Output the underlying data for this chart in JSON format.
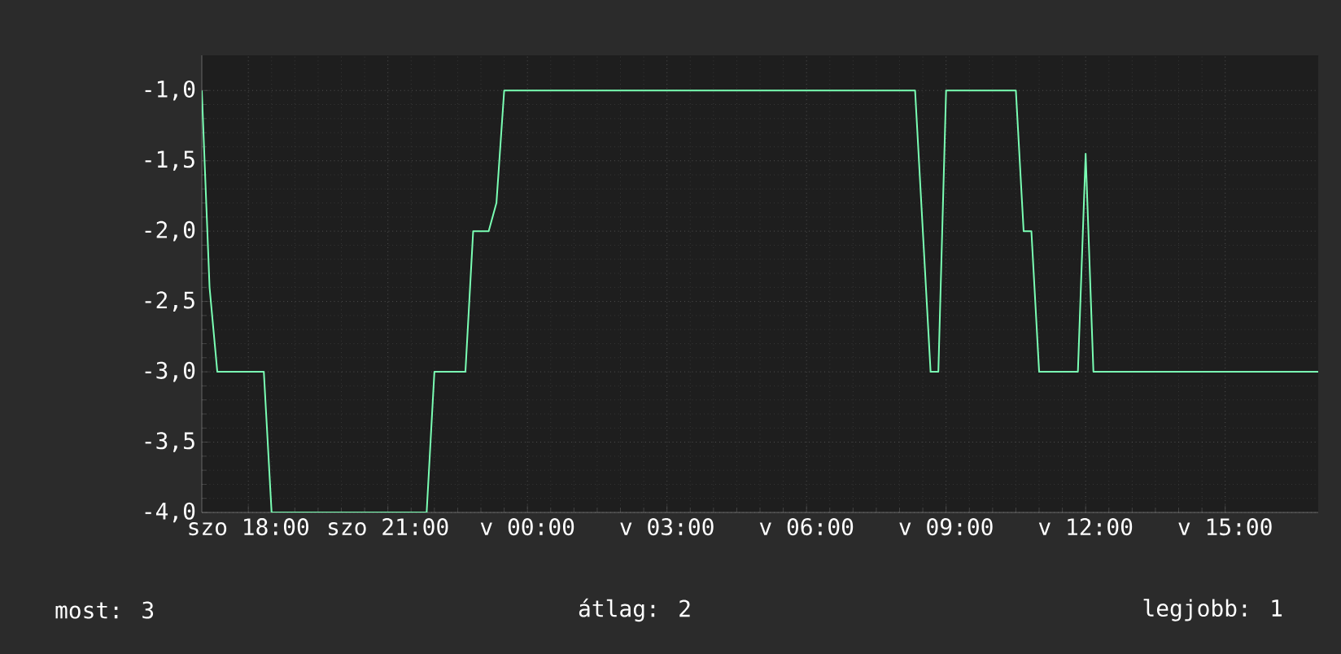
{
  "chart_data": {
    "type": "line",
    "categories": [
      null,
      null,
      null,
      null,
      null,
      null,
      "szo 18:00",
      null,
      null,
      null,
      null,
      null,
      null,
      null,
      null,
      null,
      null,
      null,
      null,
      null,
      null,
      null,
      null,
      null,
      "szo 21:00",
      null,
      null,
      null,
      null,
      null,
      null,
      null,
      null,
      null,
      null,
      null,
      null,
      null,
      null,
      null,
      null,
      null,
      "v 00:00",
      null,
      null,
      null,
      null,
      null,
      null,
      null,
      null,
      null,
      null,
      null,
      null,
      null,
      null,
      null,
      null,
      null,
      "v 03:00",
      null,
      null,
      null,
      null,
      null,
      null,
      null,
      null,
      null,
      null,
      null,
      null,
      null,
      null,
      null,
      null,
      null,
      "v 06:00",
      null,
      null,
      null,
      null,
      null,
      null,
      null,
      null,
      null,
      null,
      null,
      null,
      null,
      null,
      null,
      null,
      null,
      "v 09:00",
      null,
      null,
      null,
      null,
      null,
      null,
      null,
      null,
      null,
      null,
      null,
      null,
      null,
      null,
      null,
      null,
      null,
      "v 12:00",
      null,
      null,
      null,
      null,
      null,
      null,
      null,
      null,
      null,
      null,
      null,
      null,
      null,
      null,
      null,
      null,
      null,
      "v 15:00",
      null,
      null,
      null,
      null,
      null,
      null,
      null,
      null,
      null,
      null,
      null,
      null
    ],
    "series": [
      {
        "color": "#7affb4",
        "values": [
          -1.0,
          -2.4,
          -3.0,
          -3.0,
          -3.0,
          -3.0,
          -3.0,
          -3.0,
          -3.0,
          -4.0,
          -4.0,
          -4.0,
          -4.0,
          -4.0,
          -4.0,
          -4.0,
          -4.0,
          -4.0,
          -4.0,
          -4.0,
          -4.0,
          -4.0,
          -4.0,
          -4.0,
          -4.0,
          -4.0,
          -4.0,
          -4.0,
          -4.0,
          -4.0,
          -3.0,
          -3.0,
          -3.0,
          -3.0,
          -3.0,
          -2.0,
          -2.0,
          -2.0,
          -1.8,
          -1.0,
          -1.0,
          -1.0,
          -1.0,
          -1.0,
          -1.0,
          -1.0,
          -1.0,
          -1.0,
          -1.0,
          -1.0,
          -1.0,
          -1.0,
          -1.0,
          -1.0,
          -1.0,
          -1.0,
          -1.0,
          -1.0,
          -1.0,
          -1.0,
          -1.0,
          -1.0,
          -1.0,
          -1.0,
          -1.0,
          -1.0,
          -1.0,
          -1.0,
          -1.0,
          -1.0,
          -1.0,
          -1.0,
          -1.0,
          -1.0,
          -1.0,
          -1.0,
          -1.0,
          -1.0,
          -1.0,
          -1.0,
          -1.0,
          -1.0,
          -1.0,
          -1.0,
          -1.0,
          -1.0,
          -1.0,
          -1.0,
          -1.0,
          -1.0,
          -1.0,
          -1.0,
          -1.0,
          -2.0,
          -3.0,
          -3.0,
          -1.0,
          -1.0,
          -1.0,
          -1.0,
          -1.0,
          -1.0,
          -1.0,
          -1.0,
          -1.0,
          -1.0,
          -2.0,
          -2.0,
          -3.0,
          -3.0,
          -3.0,
          -3.0,
          -3.0,
          -3.0,
          -1.45,
          -3.0,
          -3.0,
          -3.0,
          -3.0,
          -3.0,
          -3.0,
          -3.0,
          -3.0,
          -3.0,
          -3.0,
          -3.0,
          -3.0,
          -3.0,
          -3.0,
          -3.0,
          -3.0,
          -3.0,
          -3.0,
          -3.0,
          -3.0,
          -3.0,
          -3.0,
          -3.0,
          -3.0,
          -3.0,
          -3.0,
          -3.0,
          -3.0,
          -3.0,
          -3.0
        ]
      }
    ],
    "ylim": [
      -4.0,
      -0.75
    ],
    "yticks": [
      {
        "value": -4.0,
        "label": "-4,0"
      },
      {
        "value": -3.5,
        "label": "-3,5"
      },
      {
        "value": -3.0,
        "label": "-3,0"
      },
      {
        "value": -2.5,
        "label": "-2,5"
      },
      {
        "value": -2.0,
        "label": "-2,0"
      },
      {
        "value": -1.5,
        "label": "-1,5"
      },
      {
        "value": -1.0,
        "label": "-1,0"
      }
    ],
    "grid": true,
    "annotations": [
      "most: 3",
      "átlag: 2",
      "legjobb: 1"
    ]
  }
}
